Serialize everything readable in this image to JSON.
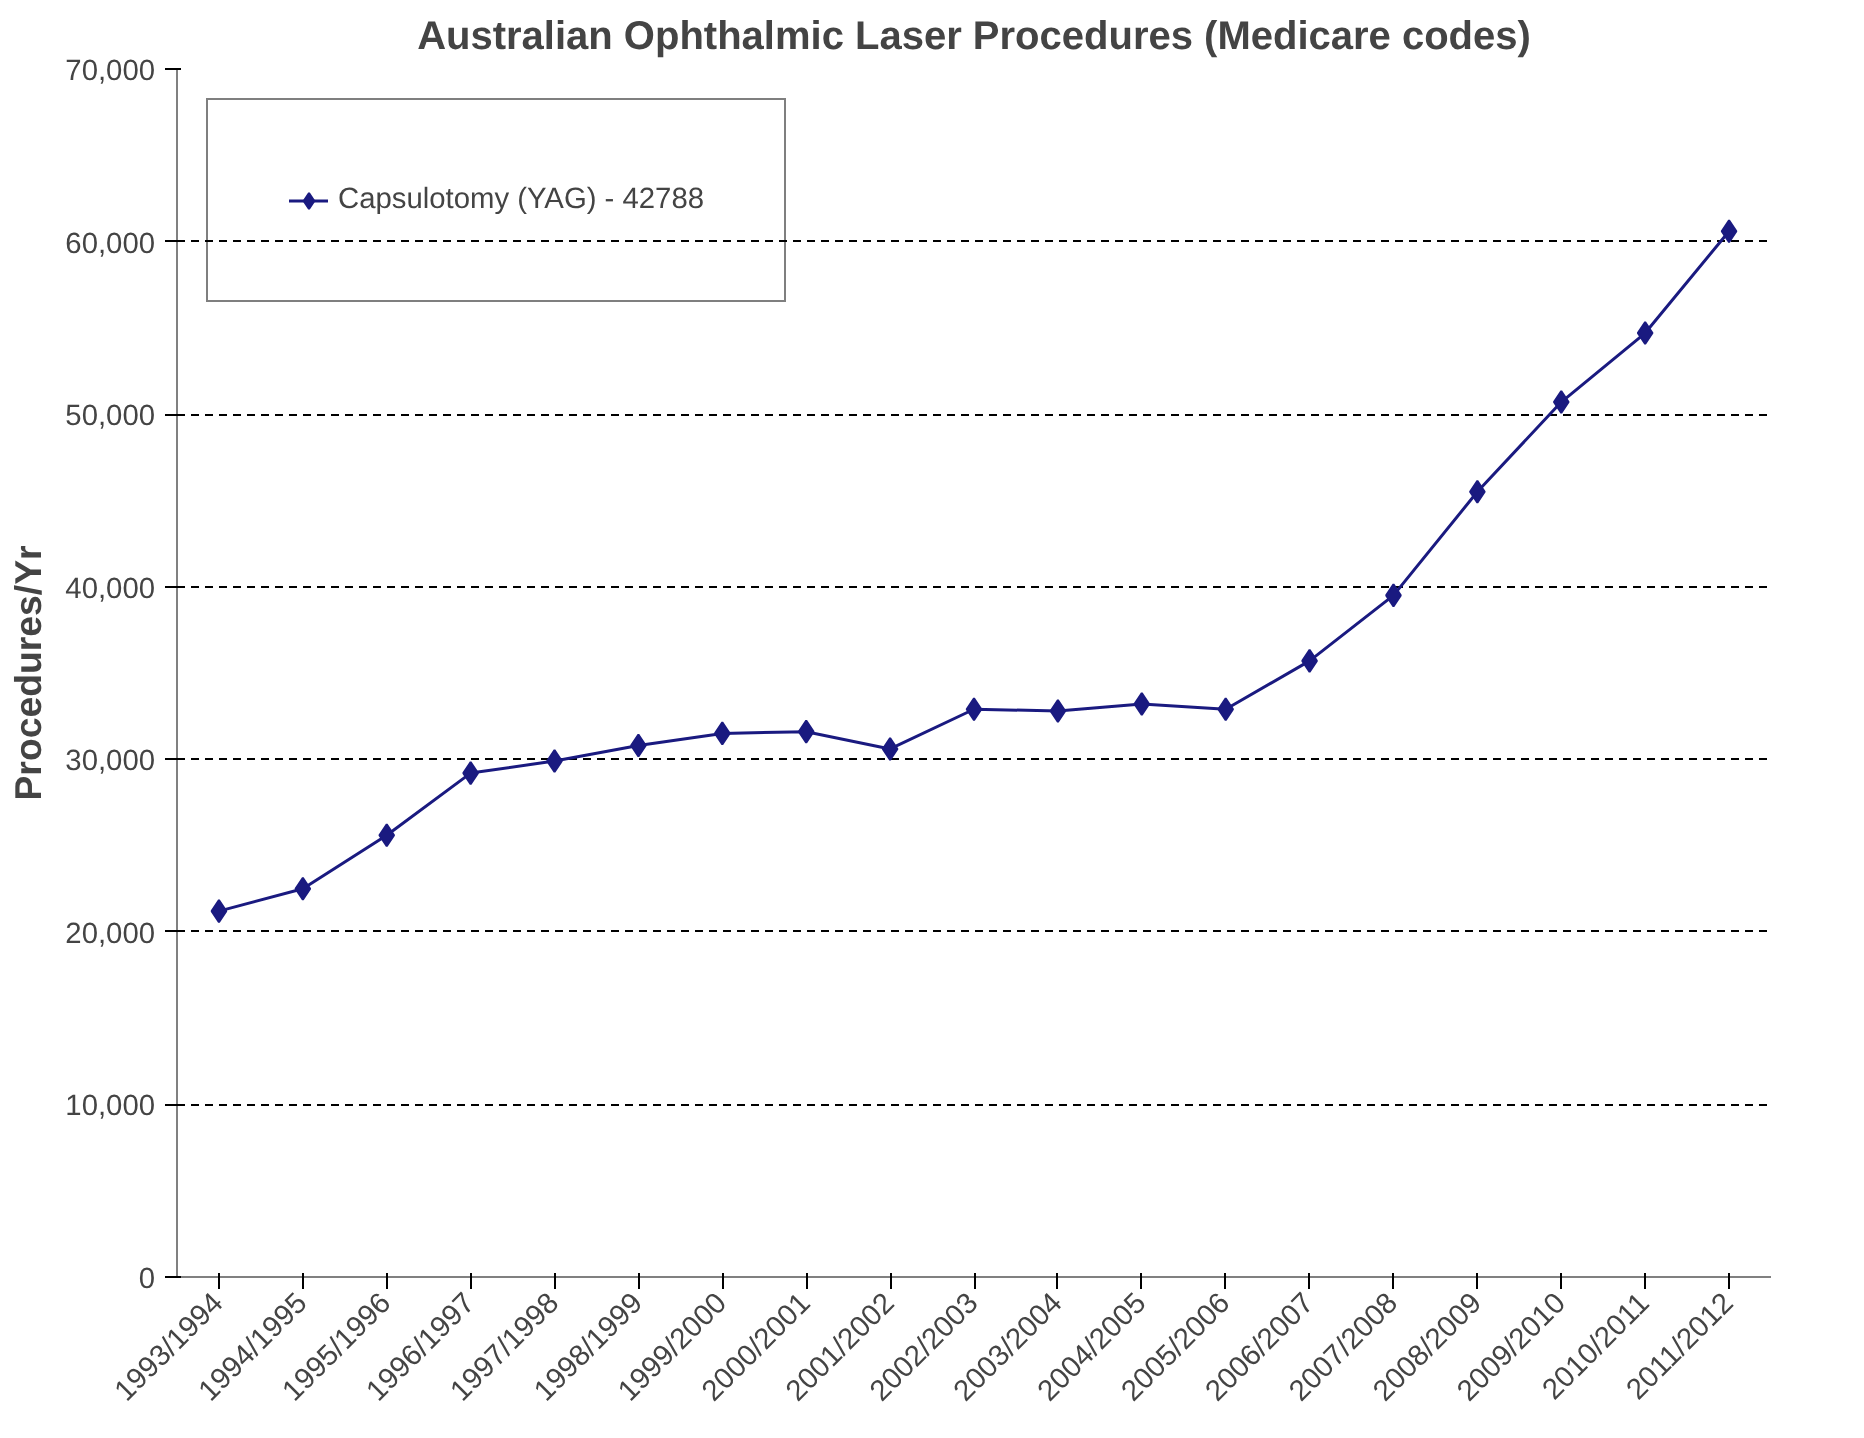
{
  "chart_data": {
    "type": "line",
    "title": "Australian Ophthalmic Laser Procedures (Medicare codes)",
    "ylabel": "Procedures/Yr",
    "categories": [
      "1993/1994",
      "1994/1995",
      "1995/1996",
      "1996/1997",
      "1997/1998",
      "1998/1999",
      "1999/2000",
      "2000/2001",
      "2001/2002",
      "2002/2003",
      "2003/2004",
      "2004/2005",
      "2005/2006",
      "2006/2007",
      "2007/2008",
      "2008/2009",
      "2009/2010",
      "2010/2011",
      "2011/2012"
    ],
    "series": [
      {
        "name": "Capsulotomy (YAG) - 42788",
        "color": "#1a1a80",
        "values": [
          21200,
          22500,
          25600,
          29200,
          29900,
          30800,
          31500,
          31600,
          30600,
          32900,
          32800,
          33200,
          32900,
          35700,
          39500,
          45500,
          50700,
          54700,
          60600
        ]
      }
    ],
    "ylim": [
      0,
      70000
    ],
    "yticks": [
      {
        "value": 0,
        "label": "0"
      },
      {
        "value": 10000,
        "label": "10,000"
      },
      {
        "value": 20000,
        "label": "20,000"
      },
      {
        "value": 30000,
        "label": "30,000"
      },
      {
        "value": 40000,
        "label": "40,000"
      },
      {
        "value": 50000,
        "label": "50,000"
      },
      {
        "value": 60000,
        "label": "60,000"
      },
      {
        "value": 70000,
        "label": "70,000"
      }
    ],
    "grid": "y",
    "legend": "top left",
    "marker": "diamond",
    "line_style": "solid"
  }
}
